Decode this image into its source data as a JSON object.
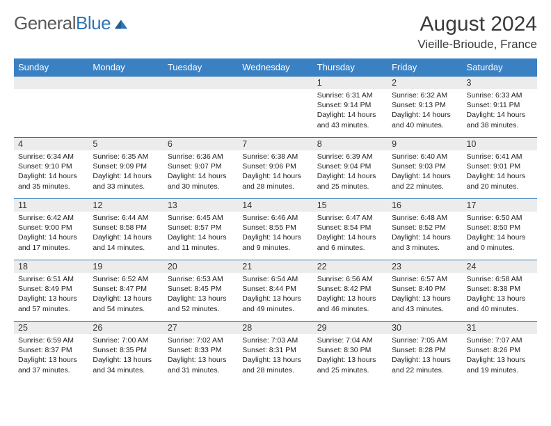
{
  "logo": {
    "text1": "General",
    "text2": "Blue"
  },
  "title": "August 2024",
  "location": "Vieille-Brioude, France",
  "colors": {
    "header_bg": "#3a81c4",
    "header_fg": "#ffffff",
    "daynum_bg": "#ececec",
    "rule": "#2e75b6",
    "logo_gray": "#58595b",
    "logo_blue": "#2e75b6",
    "text": "#222222",
    "page_bg": "#ffffff"
  },
  "day_labels": [
    "Sunday",
    "Monday",
    "Tuesday",
    "Wednesday",
    "Thursday",
    "Friday",
    "Saturday"
  ],
  "weeks": [
    [
      {
        "n": "",
        "sunrise": "",
        "sunset": "",
        "daylight": ""
      },
      {
        "n": "",
        "sunrise": "",
        "sunset": "",
        "daylight": ""
      },
      {
        "n": "",
        "sunrise": "",
        "sunset": "",
        "daylight": ""
      },
      {
        "n": "",
        "sunrise": "",
        "sunset": "",
        "daylight": ""
      },
      {
        "n": "1",
        "sunrise": "Sunrise: 6:31 AM",
        "sunset": "Sunset: 9:14 PM",
        "daylight": "Daylight: 14 hours and 43 minutes."
      },
      {
        "n": "2",
        "sunrise": "Sunrise: 6:32 AM",
        "sunset": "Sunset: 9:13 PM",
        "daylight": "Daylight: 14 hours and 40 minutes."
      },
      {
        "n": "3",
        "sunrise": "Sunrise: 6:33 AM",
        "sunset": "Sunset: 9:11 PM",
        "daylight": "Daylight: 14 hours and 38 minutes."
      }
    ],
    [
      {
        "n": "4",
        "sunrise": "Sunrise: 6:34 AM",
        "sunset": "Sunset: 9:10 PM",
        "daylight": "Daylight: 14 hours and 35 minutes."
      },
      {
        "n": "5",
        "sunrise": "Sunrise: 6:35 AM",
        "sunset": "Sunset: 9:09 PM",
        "daylight": "Daylight: 14 hours and 33 minutes."
      },
      {
        "n": "6",
        "sunrise": "Sunrise: 6:36 AM",
        "sunset": "Sunset: 9:07 PM",
        "daylight": "Daylight: 14 hours and 30 minutes."
      },
      {
        "n": "7",
        "sunrise": "Sunrise: 6:38 AM",
        "sunset": "Sunset: 9:06 PM",
        "daylight": "Daylight: 14 hours and 28 minutes."
      },
      {
        "n": "8",
        "sunrise": "Sunrise: 6:39 AM",
        "sunset": "Sunset: 9:04 PM",
        "daylight": "Daylight: 14 hours and 25 minutes."
      },
      {
        "n": "9",
        "sunrise": "Sunrise: 6:40 AM",
        "sunset": "Sunset: 9:03 PM",
        "daylight": "Daylight: 14 hours and 22 minutes."
      },
      {
        "n": "10",
        "sunrise": "Sunrise: 6:41 AM",
        "sunset": "Sunset: 9:01 PM",
        "daylight": "Daylight: 14 hours and 20 minutes."
      }
    ],
    [
      {
        "n": "11",
        "sunrise": "Sunrise: 6:42 AM",
        "sunset": "Sunset: 9:00 PM",
        "daylight": "Daylight: 14 hours and 17 minutes."
      },
      {
        "n": "12",
        "sunrise": "Sunrise: 6:44 AM",
        "sunset": "Sunset: 8:58 PM",
        "daylight": "Daylight: 14 hours and 14 minutes."
      },
      {
        "n": "13",
        "sunrise": "Sunrise: 6:45 AM",
        "sunset": "Sunset: 8:57 PM",
        "daylight": "Daylight: 14 hours and 11 minutes."
      },
      {
        "n": "14",
        "sunrise": "Sunrise: 6:46 AM",
        "sunset": "Sunset: 8:55 PM",
        "daylight": "Daylight: 14 hours and 9 minutes."
      },
      {
        "n": "15",
        "sunrise": "Sunrise: 6:47 AM",
        "sunset": "Sunset: 8:54 PM",
        "daylight": "Daylight: 14 hours and 6 minutes."
      },
      {
        "n": "16",
        "sunrise": "Sunrise: 6:48 AM",
        "sunset": "Sunset: 8:52 PM",
        "daylight": "Daylight: 14 hours and 3 minutes."
      },
      {
        "n": "17",
        "sunrise": "Sunrise: 6:50 AM",
        "sunset": "Sunset: 8:50 PM",
        "daylight": "Daylight: 14 hours and 0 minutes."
      }
    ],
    [
      {
        "n": "18",
        "sunrise": "Sunrise: 6:51 AM",
        "sunset": "Sunset: 8:49 PM",
        "daylight": "Daylight: 13 hours and 57 minutes."
      },
      {
        "n": "19",
        "sunrise": "Sunrise: 6:52 AM",
        "sunset": "Sunset: 8:47 PM",
        "daylight": "Daylight: 13 hours and 54 minutes."
      },
      {
        "n": "20",
        "sunrise": "Sunrise: 6:53 AM",
        "sunset": "Sunset: 8:45 PM",
        "daylight": "Daylight: 13 hours and 52 minutes."
      },
      {
        "n": "21",
        "sunrise": "Sunrise: 6:54 AM",
        "sunset": "Sunset: 8:44 PM",
        "daylight": "Daylight: 13 hours and 49 minutes."
      },
      {
        "n": "22",
        "sunrise": "Sunrise: 6:56 AM",
        "sunset": "Sunset: 8:42 PM",
        "daylight": "Daylight: 13 hours and 46 minutes."
      },
      {
        "n": "23",
        "sunrise": "Sunrise: 6:57 AM",
        "sunset": "Sunset: 8:40 PM",
        "daylight": "Daylight: 13 hours and 43 minutes."
      },
      {
        "n": "24",
        "sunrise": "Sunrise: 6:58 AM",
        "sunset": "Sunset: 8:38 PM",
        "daylight": "Daylight: 13 hours and 40 minutes."
      }
    ],
    [
      {
        "n": "25",
        "sunrise": "Sunrise: 6:59 AM",
        "sunset": "Sunset: 8:37 PM",
        "daylight": "Daylight: 13 hours and 37 minutes."
      },
      {
        "n": "26",
        "sunrise": "Sunrise: 7:00 AM",
        "sunset": "Sunset: 8:35 PM",
        "daylight": "Daylight: 13 hours and 34 minutes."
      },
      {
        "n": "27",
        "sunrise": "Sunrise: 7:02 AM",
        "sunset": "Sunset: 8:33 PM",
        "daylight": "Daylight: 13 hours and 31 minutes."
      },
      {
        "n": "28",
        "sunrise": "Sunrise: 7:03 AM",
        "sunset": "Sunset: 8:31 PM",
        "daylight": "Daylight: 13 hours and 28 minutes."
      },
      {
        "n": "29",
        "sunrise": "Sunrise: 7:04 AM",
        "sunset": "Sunset: 8:30 PM",
        "daylight": "Daylight: 13 hours and 25 minutes."
      },
      {
        "n": "30",
        "sunrise": "Sunrise: 7:05 AM",
        "sunset": "Sunset: 8:28 PM",
        "daylight": "Daylight: 13 hours and 22 minutes."
      },
      {
        "n": "31",
        "sunrise": "Sunrise: 7:07 AM",
        "sunset": "Sunset: 8:26 PM",
        "daylight": "Daylight: 13 hours and 19 minutes."
      }
    ]
  ]
}
